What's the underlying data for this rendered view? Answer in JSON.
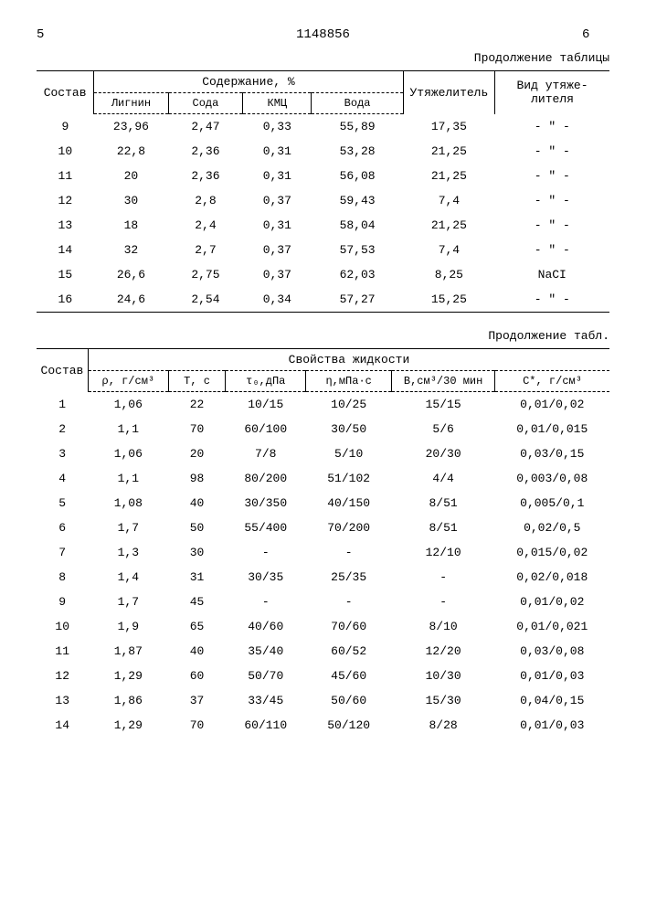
{
  "header": {
    "left_num": "5",
    "doc_number": "1148856",
    "right_num": "6"
  },
  "table1": {
    "continuation": "Продолжение таблицы",
    "col_compos": "Состав",
    "group_content": "Содержание, %",
    "col_lignin": "Лигнин",
    "col_soda": "Сода",
    "col_kmc": "КМЦ",
    "col_water": "Вода",
    "col_weight": "Утяжели­тель",
    "col_type": "Вид утяже­лителя",
    "rows": [
      {
        "n": "9",
        "lignin": "23,96",
        "soda": "2,47",
        "kmc": "0,33",
        "water": "55,89",
        "weight": "17,35",
        "type": "- \" -"
      },
      {
        "n": "10",
        "lignin": "22,8",
        "soda": "2,36",
        "kmc": "0,31",
        "water": "53,28",
        "weight": "21,25",
        "type": "- \" -"
      },
      {
        "n": "11",
        "lignin": "20",
        "soda": "2,36",
        "kmc": "0,31",
        "water": "56,08",
        "weight": "21,25",
        "type": "- \" -"
      },
      {
        "n": "12",
        "lignin": "30",
        "soda": "2,8",
        "kmc": "0,37",
        "water": "59,43",
        "weight": "7,4",
        "type": "- \" -"
      },
      {
        "n": "13",
        "lignin": "18",
        "soda": "2,4",
        "kmc": "0,31",
        "water": "58,04",
        "weight": "21,25",
        "type": "- \" -"
      },
      {
        "n": "14",
        "lignin": "32",
        "soda": "2,7",
        "kmc": "0,37",
        "water": "57,53",
        "weight": "7,4",
        "type": "- \" -"
      },
      {
        "n": "15",
        "lignin": "26,6",
        "soda": "2,75",
        "kmc": "0,37",
        "water": "62,03",
        "weight": "8,25",
        "type": "NaCI"
      },
      {
        "n": "16",
        "lignin": "24,6",
        "soda": "2,54",
        "kmc": "0,34",
        "water": "57,27",
        "weight": "15,25",
        "type": "- \" -"
      }
    ]
  },
  "table2": {
    "continuation": "Продолжение табл.",
    "col_compos": "Состав",
    "group_props": "Свойства жидкости",
    "col_rho": "ρ, г/см³",
    "col_t": "Т, с",
    "col_tau": "τ₀,дПа",
    "col_eta": "η,мПа·с",
    "col_b": "B,см³/30 мин",
    "col_c": "C*, г/см³",
    "rows": [
      {
        "n": "1",
        "rho": "1,06",
        "t": "22",
        "tau": "10/15",
        "eta": "10/25",
        "b": "15/15",
        "c": "0,01/0,02"
      },
      {
        "n": "2",
        "rho": "1,1",
        "t": "70",
        "tau": "60/100",
        "eta": "30/50",
        "b": "5/6",
        "c": "0,01/0,015"
      },
      {
        "n": "3",
        "rho": "1,06",
        "t": "20",
        "tau": "7/8",
        "eta": "5/10",
        "b": "20/30",
        "c": "0,03/0,15"
      },
      {
        "n": "4",
        "rho": "1,1",
        "t": "98",
        "tau": "80/200",
        "eta": "51/102",
        "b": "4/4",
        "c": "0,003/0,08"
      },
      {
        "n": "5",
        "rho": "1,08",
        "t": "40",
        "tau": "30/350",
        "eta": "40/150",
        "b": "8/51",
        "c": "0,005/0,1"
      },
      {
        "n": "6",
        "rho": "1,7",
        "t": "50",
        "tau": "55/400",
        "eta": "70/200",
        "b": "8/51",
        "c": "0,02/0,5"
      },
      {
        "n": "7",
        "rho": "1,3",
        "t": "30",
        "tau": "-",
        "eta": "-",
        "b": "12/10",
        "c": "0,015/0,02"
      },
      {
        "n": "8",
        "rho": "1,4",
        "t": "31",
        "tau": "30/35",
        "eta": "25/35",
        "b": "-",
        "c": "0,02/0,018"
      },
      {
        "n": "9",
        "rho": "1,7",
        "t": "45",
        "tau": "-",
        "eta": "-",
        "b": "-",
        "c": "0,01/0,02"
      },
      {
        "n": "10",
        "rho": "1,9",
        "t": "65",
        "tau": "40/60",
        "eta": "70/60",
        "b": "8/10",
        "c": "0,01/0,021"
      },
      {
        "n": "11",
        "rho": "1,87",
        "t": "40",
        "tau": "35/40",
        "eta": "60/52",
        "b": "12/20",
        "c": "0,03/0,08"
      },
      {
        "n": "12",
        "rho": "1,29",
        "t": "60",
        "tau": "50/70",
        "eta": "45/60",
        "b": "10/30",
        "c": "0,01/0,03"
      },
      {
        "n": "13",
        "rho": "1,86",
        "t": "37",
        "tau": "33/45",
        "eta": "50/60",
        "b": "15/30",
        "c": "0,04/0,15"
      },
      {
        "n": "14",
        "rho": "1,29",
        "t": "70",
        "tau": "60/110",
        "eta": "50/120",
        "b": "8/28",
        "c": "0,01/0,03"
      }
    ]
  }
}
